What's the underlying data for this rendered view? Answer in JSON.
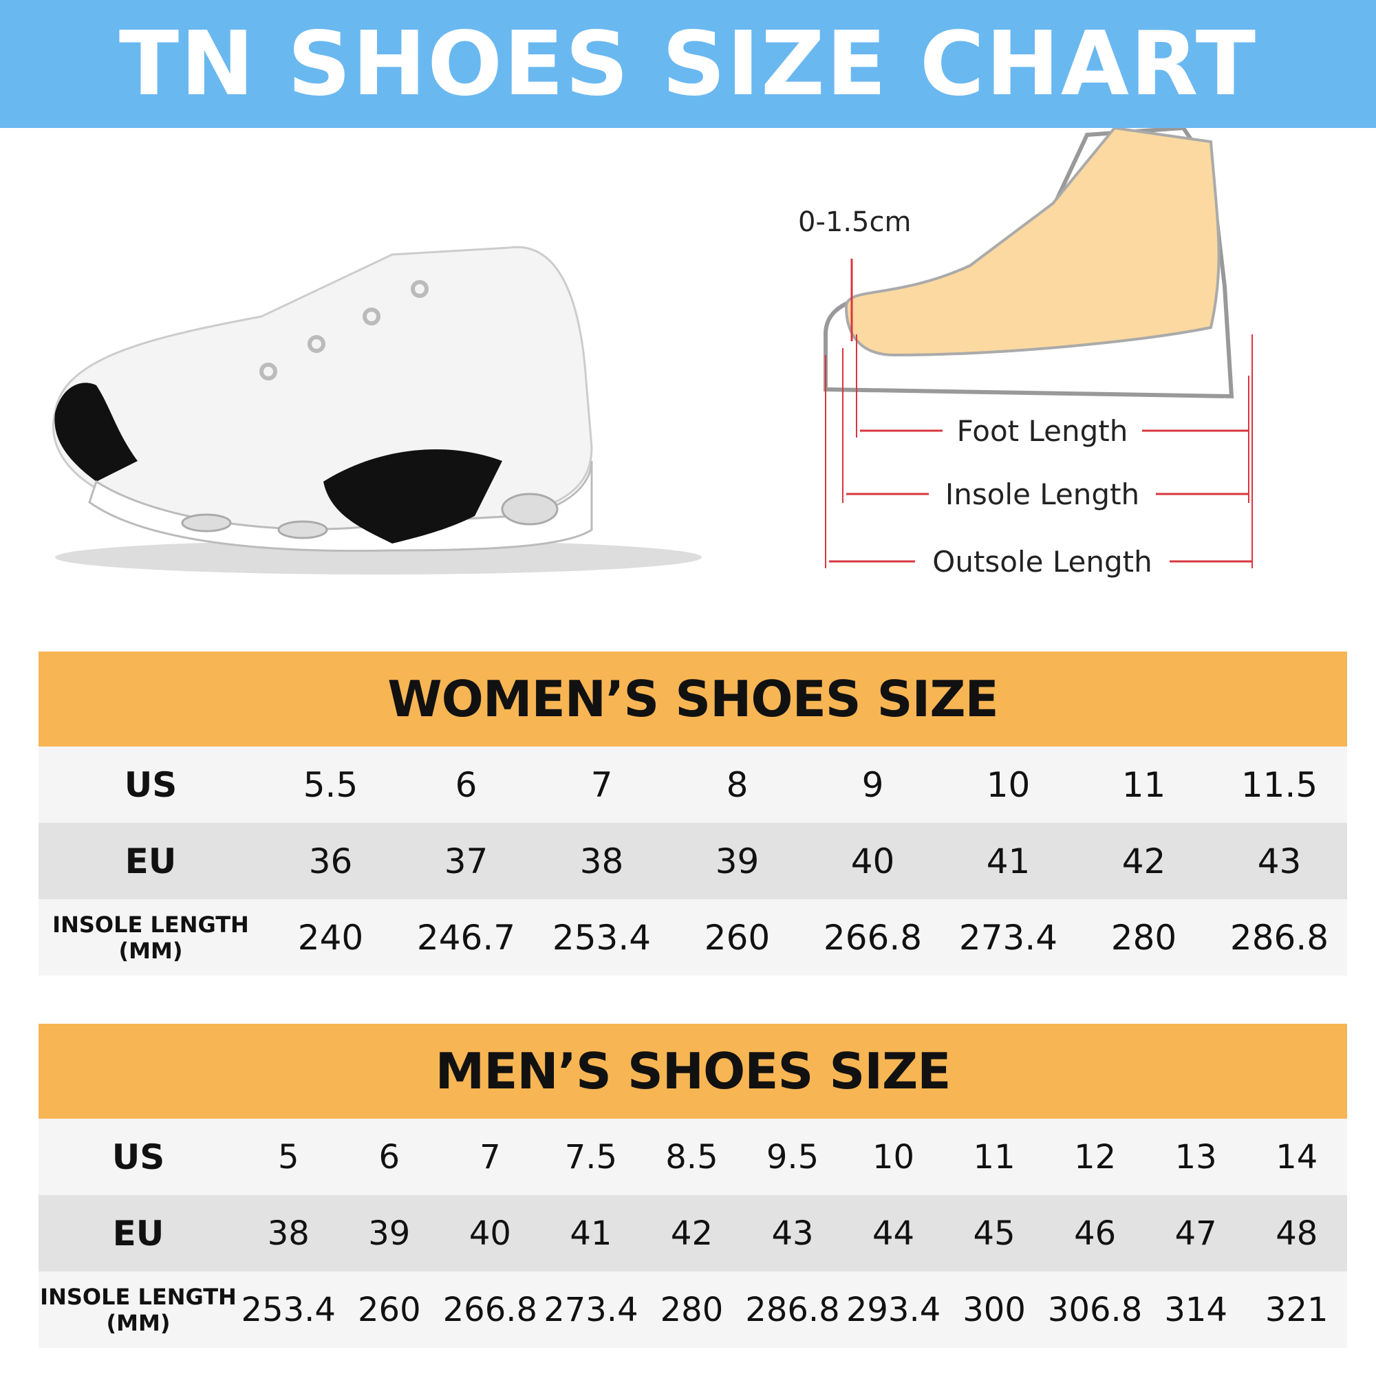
{
  "title": "TN SHOES SIZE CHART",
  "diagram": {
    "toe_gap": "0-1.5cm",
    "foot_length": "Foot Length",
    "insole_length": "Insole Length",
    "outsole_length": "Outsole Length",
    "arrow_color": "#d9363e"
  },
  "colors": {
    "banner": "#6ab8f0",
    "table_header": "#f7b553"
  },
  "women": {
    "title": "WOMEN’S SHOES SIZE",
    "labels": {
      "us": "US",
      "eu": "EU",
      "insole": "INSOLE LENGTH",
      "unit": "(MM)"
    },
    "us": [
      "5.5",
      "6",
      "7",
      "8",
      "9",
      "10",
      "11",
      "11.5"
    ],
    "eu": [
      "36",
      "37",
      "38",
      "39",
      "40",
      "41",
      "42",
      "43"
    ],
    "insole": [
      "240",
      "246.7",
      "253.4",
      "260",
      "266.8",
      "273.4",
      "280",
      "286.8"
    ]
  },
  "men": {
    "title": "MEN’S SHOES SIZE",
    "labels": {
      "us": "US",
      "eu": "EU",
      "insole": "INSOLE LENGTH",
      "unit": "(MM)"
    },
    "us": [
      "5",
      "6",
      "7",
      "7.5",
      "8.5",
      "9.5",
      "10",
      "11",
      "12",
      "13",
      "14"
    ],
    "eu": [
      "38",
      "39",
      "40",
      "41",
      "42",
      "43",
      "44",
      "45",
      "46",
      "47",
      "48"
    ],
    "insole": [
      "253.4",
      "260",
      "266.8",
      "273.4",
      "280",
      "286.8",
      "293.4",
      "300",
      "306.8",
      "314",
      "321"
    ]
  }
}
